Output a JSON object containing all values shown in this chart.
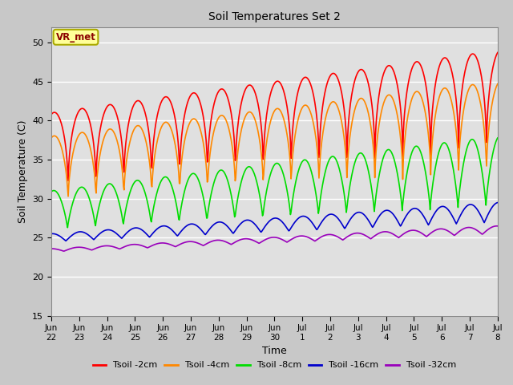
{
  "title": "Soil Temperatures Set 2",
  "xlabel": "Time",
  "ylabel": "Soil Temperature (C)",
  "ylim": [
    15,
    52
  ],
  "yticks": [
    15,
    20,
    25,
    30,
    35,
    40,
    45,
    50
  ],
  "fig_bg_color": "#c8c8c8",
  "plot_bg_color": "#e0e0e0",
  "legend_labels": [
    "Tsoil -2cm",
    "Tsoil -4cm",
    "Tsoil -8cm",
    "Tsoil -16cm",
    "Tsoil -32cm"
  ],
  "line_colors": [
    "#ff0000",
    "#ff8800",
    "#00dd00",
    "#0000cc",
    "#9900bb"
  ],
  "annotation_text": "VR_met",
  "annotation_color": "#8b0000",
  "annotation_bg": "#ffff99",
  "annotation_edge": "#aaaa00",
  "grid_color": "#ffffff",
  "n_days": 16,
  "hours_per_day": 48
}
